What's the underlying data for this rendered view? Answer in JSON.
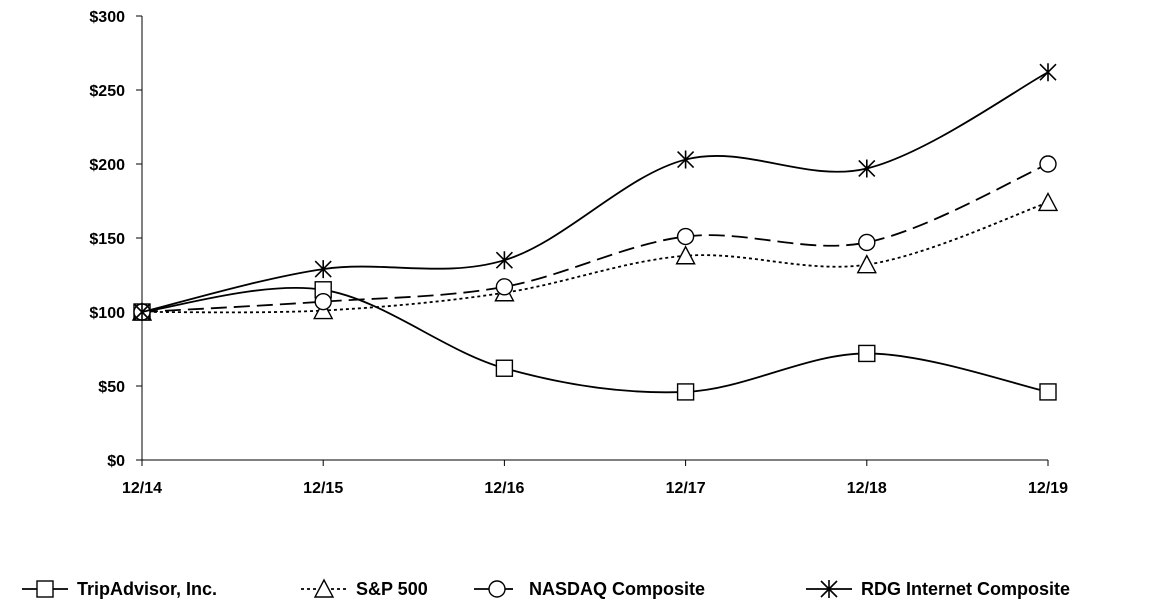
{
  "chart_data": {
    "type": "line",
    "title": "",
    "xlabel": "",
    "ylabel": "",
    "categories": [
      "12/14",
      "12/15",
      "12/16",
      "12/17",
      "12/18",
      "12/19"
    ],
    "ylim": [
      0,
      300
    ],
    "yticks": [
      0,
      50,
      100,
      150,
      200,
      250,
      300
    ],
    "ytick_labels": [
      "$0",
      "$50",
      "$100",
      "$150",
      "$200",
      "$250",
      "$300"
    ],
    "grid": false,
    "legend_position": "bottom",
    "series": [
      {
        "name": "TripAdvisor, Inc.",
        "values": [
          100,
          115,
          62,
          46,
          72,
          46
        ],
        "marker": "square",
        "line_style": "solid"
      },
      {
        "name": "S&P 500",
        "values": [
          100,
          101,
          113,
          138,
          132,
          174
        ],
        "marker": "triangle",
        "line_style": "dotted"
      },
      {
        "name": "NASDAQ Composite",
        "values": [
          100,
          107,
          117,
          151,
          147,
          200
        ],
        "marker": "circle",
        "line_style": "dashed"
      },
      {
        "name": "RDG Internet Composite",
        "values": [
          100,
          129,
          135,
          203,
          197,
          262
        ],
        "marker": "star",
        "line_style": "solid"
      }
    ]
  }
}
